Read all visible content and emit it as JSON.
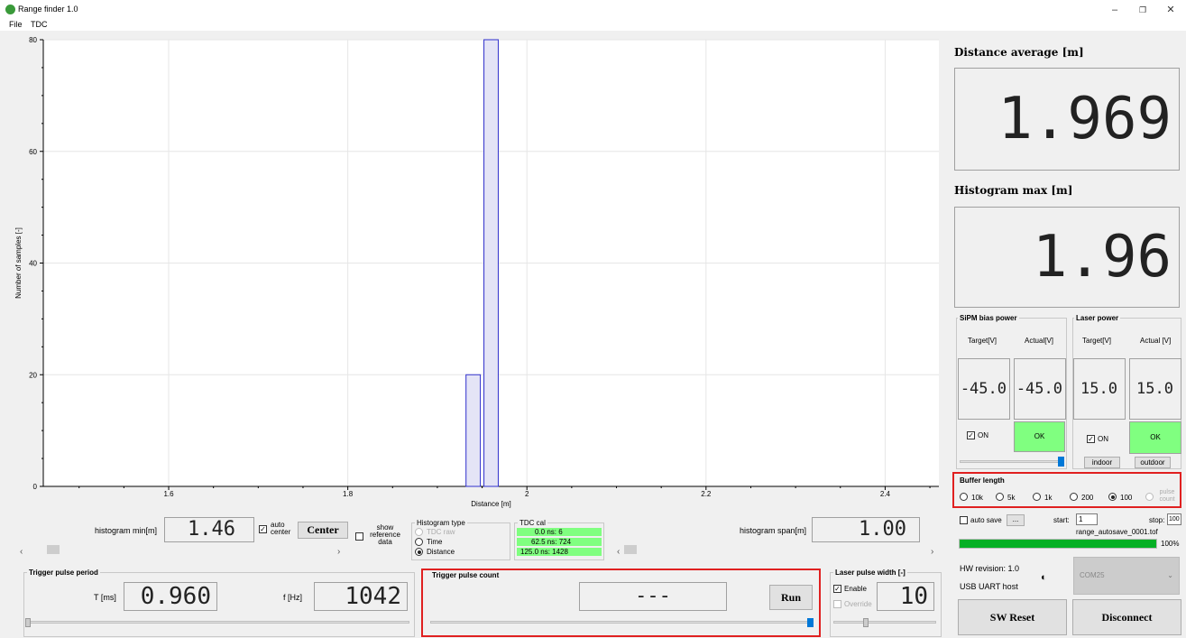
{
  "window": {
    "title": "Range finder 1.0",
    "minimize": "–",
    "restore": "❐",
    "close": "✕"
  },
  "menu": [
    "File",
    "TDC"
  ],
  "colors": {
    "bar_fill": "#e4e4f6",
    "bar_stroke": "#3030cc",
    "status_green": "#80ff80",
    "progress_green": "#06b025",
    "highlight_red": "#e02020"
  },
  "chart_data": {
    "type": "bar",
    "xlabel": "Distance [m]",
    "ylabel": "Number of samples [-]",
    "xlim": [
      1.46,
      2.46
    ],
    "ylim": [
      0,
      80
    ],
    "xticks": [
      "1.6",
      "1.8",
      "2",
      "2.2",
      "2.4"
    ],
    "yticks": [
      "0",
      "20",
      "40",
      "60",
      "80"
    ],
    "x": [
      1.94,
      1.96
    ],
    "values": [
      20,
      80
    ],
    "bin_width": 0.016,
    "grid": true
  },
  "histogram": {
    "min_label": "histogram min[m]",
    "min_value": "1.46",
    "auto_center_label": "auto center",
    "auto_center_checked": true,
    "center_button": "Center",
    "show_ref_label": "show reference data",
    "show_ref_checked": false,
    "span_label": "histogram span[m]",
    "span_value": "1.00"
  },
  "histogram_type": {
    "title": "Histogram type",
    "options": [
      {
        "label": "TDC raw",
        "selected": false,
        "disabled": true
      },
      {
        "label": "Time",
        "selected": false,
        "disabled": false
      },
      {
        "label": "Distance",
        "selected": true,
        "disabled": false
      }
    ]
  },
  "tdc_cal": {
    "title": "TDC cal",
    "rows": [
      "0.0 ns: 6",
      "62.5 ns: 724",
      "125.0 ns: 1428"
    ]
  },
  "trigger_period": {
    "title": "Trigger pulse period",
    "t_label": "T [ms]",
    "t_value": "0.960",
    "f_label": "f [Hz]",
    "f_value": "1042"
  },
  "trigger_count": {
    "title": "Trigger pulse count",
    "value": "---",
    "run_button": "Run"
  },
  "laser_width": {
    "title": "Laser pulse width [-]",
    "enable_label": "Enable",
    "enable_checked": true,
    "override_label": "Override",
    "override_checked": false,
    "value": "10"
  },
  "distance_avg": {
    "title": "Distance average [m]",
    "value": "1.969"
  },
  "hist_max": {
    "title": "Histogram max [m]",
    "value": "1.96"
  },
  "sipm": {
    "title": "SiPM bias power",
    "target_label": "Target[V]",
    "actual_label": "Actual[V]",
    "target": "-45.0",
    "actual": "-45.0",
    "on_label": "ON",
    "on_checked": true,
    "status": "OK"
  },
  "laser_power": {
    "title": "Laser power",
    "target_label": "Target[V]",
    "actual_label": "Actual [V]",
    "target": "15.0",
    "actual": "15.0",
    "on_label": "ON",
    "on_checked": true,
    "status": "OK",
    "indoor_button": "indoor",
    "outdoor_button": "outdoor"
  },
  "buffer": {
    "title": "Buffer length",
    "options": [
      {
        "label": "10k",
        "selected": false,
        "disabled": false
      },
      {
        "label": "5k",
        "selected": false,
        "disabled": false
      },
      {
        "label": "1k",
        "selected": false,
        "disabled": false
      },
      {
        "label": "200",
        "selected": false,
        "disabled": false
      },
      {
        "label": "100",
        "selected": true,
        "disabled": false
      },
      {
        "label": "pulse count",
        "selected": false,
        "disabled": true
      }
    ]
  },
  "autosave": {
    "label": "auto save",
    "checked": false,
    "browse": "...",
    "start_label": "start:",
    "start_value": "1",
    "stop_label": "stop:",
    "stop_value": "100",
    "filename": "range_autosave_0001.tof",
    "progress": 100,
    "progress_text": "100%"
  },
  "hw": {
    "revision": "HW revision: 1.0",
    "host": "USB UART host",
    "port": "COM25"
  },
  "buttons": {
    "sw_reset": "SW Reset",
    "disconnect": "Disconnect"
  }
}
